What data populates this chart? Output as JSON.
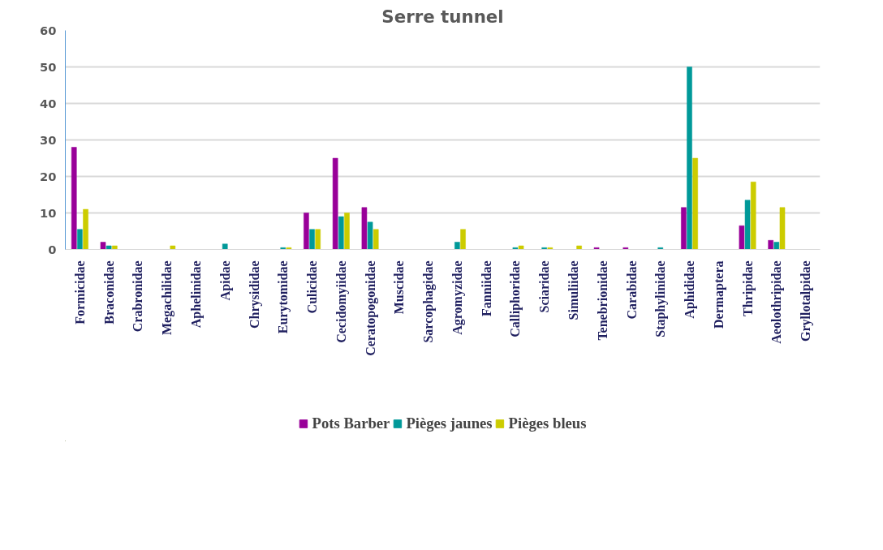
{
  "chart_data": {
    "type": "bar",
    "title": "Serre tunnel",
    "categories": [
      "Formicidae",
      "Braconidae",
      "Crabronidae",
      "Megachilidae",
      "Aphelinidae",
      "Apidae",
      "Chrysididae",
      "Eurytomidae",
      "Culicidae",
      "Cecidomyiidae",
      "Ceratopogonidae",
      "Muscidae",
      "Sarcophagidae",
      "Agromyzidae",
      "Fanniidae",
      "Calliphoridae",
      "Sciaridae",
      "Simuliidae",
      "Tenebrionidae",
      "Carabidae",
      "Staphylinidae",
      "Aphididae",
      "Dermaptera",
      "Thripidae",
      "Aeolothripidae",
      "Gryllotalpidae"
    ],
    "series": [
      {
        "name": "Pots Barber",
        "color": "#990099",
        "values": [
          28,
          2,
          0,
          0,
          0,
          0,
          0,
          0,
          10,
          25,
          11.5,
          0,
          0,
          0,
          0,
          0,
          0,
          0,
          0.5,
          0.5,
          0,
          11.5,
          0,
          6.5,
          2.5,
          0
        ]
      },
      {
        "name": "Pièges jaunes",
        "color": "#009999",
        "values": [
          5.5,
          1,
          0,
          0,
          0,
          1.5,
          0,
          0.5,
          5.5,
          9,
          7.5,
          0,
          0,
          2,
          0,
          0.5,
          0.5,
          0,
          0,
          0,
          0.5,
          50,
          0,
          13.5,
          2,
          0
        ]
      },
      {
        "name": "Pièges bleus",
        "color": "#cccc00",
        "values": [
          11,
          1,
          0,
          1,
          0,
          0,
          0,
          0.5,
          5.5,
          10,
          5.5,
          0,
          0,
          5.5,
          0,
          1,
          0.5,
          1,
          0,
          0,
          0,
          25,
          0,
          18.5,
          11.5,
          0
        ]
      }
    ],
    "ylim": [
      0,
      60
    ],
    "yticks": [
      0,
      10,
      20,
      30,
      40,
      50,
      60
    ],
    "grid": "y",
    "legend": "bottom"
  }
}
